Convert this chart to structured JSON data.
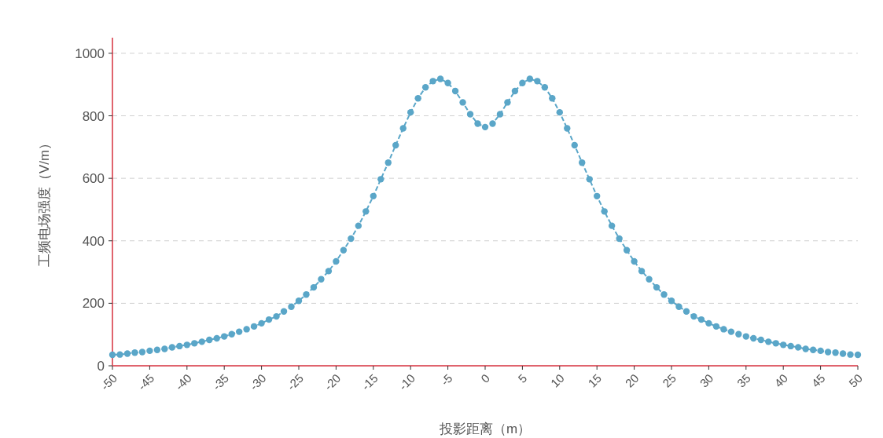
{
  "chart_data": {
    "type": "line",
    "xlabel": "投影距离（m）",
    "ylabel": "工频电场强度（V/m）",
    "x": [
      -50,
      -49,
      -48,
      -47,
      -46,
      -45,
      -44,
      -43,
      -42,
      -41,
      -40,
      -39,
      -38,
      -37,
      -36,
      -35,
      -34,
      -33,
      -32,
      -31,
      -30,
      -29,
      -28,
      -27,
      -26,
      -25,
      -24,
      -23,
      -22,
      -21,
      -20,
      -19,
      -18,
      -17,
      -16,
      -15,
      -14,
      -13,
      -12,
      -11,
      -10,
      -9,
      -8,
      -7,
      -6,
      -5,
      -4,
      -3,
      -2,
      -1,
      0,
      1,
      2,
      3,
      4,
      5,
      6,
      7,
      8,
      9,
      10,
      11,
      12,
      13,
      14,
      15,
      16,
      17,
      18,
      19,
      20,
      21,
      22,
      23,
      24,
      25,
      26,
      27,
      28,
      29,
      30,
      31,
      32,
      33,
      34,
      35,
      36,
      37,
      38,
      39,
      40,
      41,
      42,
      43,
      44,
      45,
      46,
      47,
      48,
      49,
      50
    ],
    "series": [
      {
        "color": "#5aa6c8",
        "values": [
          35,
          36,
          39,
          42,
          44,
          48,
          51,
          54,
          59,
          63,
          67,
          72,
          77,
          83,
          88,
          94,
          101,
          109,
          117,
          126,
          136,
          148,
          158,
          174,
          189,
          208,
          228,
          251,
          277,
          303,
          334,
          370,
          407,
          448,
          494,
          543,
          597,
          650,
          706,
          760,
          811,
          856,
          891,
          911,
          918,
          905,
          879,
          843,
          805,
          775,
          764,
          775,
          805,
          843,
          879,
          905,
          918,
          911,
          891,
          856,
          811,
          760,
          706,
          650,
          597,
          543,
          494,
          448,
          407,
          370,
          334,
          303,
          277,
          251,
          228,
          208,
          189,
          174,
          158,
          148,
          136,
          126,
          117,
          109,
          101,
          94,
          88,
          83,
          77,
          72,
          67,
          63,
          59,
          54,
          51,
          48,
          44,
          42,
          39,
          36,
          35
        ]
      }
    ],
    "xlim": [
      -50,
      50
    ],
    "ylim": [
      0,
      1050
    ],
    "xticks": [
      -50,
      -45,
      -40,
      -35,
      -30,
      -25,
      -20,
      -15,
      -10,
      -5,
      0,
      5,
      10,
      15,
      20,
      25,
      30,
      35,
      40,
      45,
      50
    ],
    "yticks": [
      0,
      200,
      400,
      600,
      800,
      1000
    ],
    "grid": "y",
    "marker": "circle",
    "line_style": "dashed"
  }
}
